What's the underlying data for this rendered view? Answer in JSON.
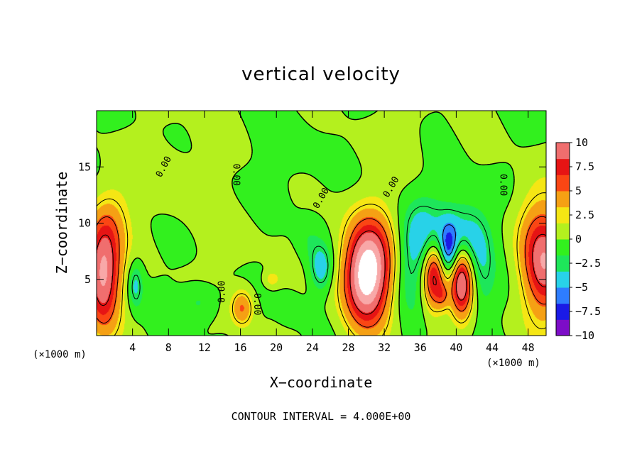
{
  "chart_data": {
    "type": "heatmap",
    "title": "vertical velocity",
    "xlabel": "X−coordinate",
    "ylabel": "Z−coordinate",
    "x_unit_left": "(×1000 m)",
    "x_unit_right": "(×1000 m)",
    "xlim": [
      0,
      50
    ],
    "ylim": [
      0,
      20
    ],
    "xticks": [
      4,
      8,
      12,
      16,
      20,
      24,
      28,
      32,
      36,
      40,
      44,
      48
    ],
    "yticks": [
      5,
      10,
      15
    ],
    "contour_interval_text": "CONTOUR INTERVAL = 4.000E+00",
    "contour_labels": [
      {
        "text": "0.00",
        "x": 7.5,
        "y": 15.0,
        "rot": -62
      },
      {
        "text": "0.00",
        "x": 15.5,
        "y": 14.3,
        "rot": 90
      },
      {
        "text": "0.00",
        "x": 25.0,
        "y": 12.2,
        "rot": -60
      },
      {
        "text": "0.00",
        "x": 32.8,
        "y": 13.2,
        "rot": -60
      },
      {
        "text": "0.00",
        "x": 45.2,
        "y": 13.4,
        "rot": 90
      },
      {
        "text": "0.00",
        "x": 14.0,
        "y": 3.9,
        "rot": -90
      },
      {
        "text": "0.00",
        "x": 17.8,
        "y": 2.8,
        "rot": 90
      }
    ],
    "features": [
      {
        "x": 0.7,
        "z": 5.5,
        "sx": 1.4,
        "sz": 3.5,
        "a": 16
      },
      {
        "x": 49.8,
        "z": 6.5,
        "sx": 1.8,
        "sz": 3.5,
        "a": 14
      },
      {
        "x": 30.0,
        "z": 5.2,
        "sx": 1.9,
        "sz": 3.2,
        "a": 18
      },
      {
        "x": 31.0,
        "z": 8.0,
        "sx": 2.2,
        "sz": 3.0,
        "a": 4
      },
      {
        "x": 37.5,
        "z": 5.5,
        "sx": 0.9,
        "sz": 2.2,
        "a": 15
      },
      {
        "x": 40.6,
        "z": 5.0,
        "sx": 0.9,
        "sz": 2.3,
        "a": 16
      },
      {
        "x": 16.2,
        "z": 2.5,
        "sx": 0.9,
        "sz": 1.2,
        "a": 8
      },
      {
        "x": 4.3,
        "z": 4.5,
        "sx": 0.6,
        "sz": 1.5,
        "a": -6
      },
      {
        "x": 25.0,
        "z": 6.0,
        "sx": 0.9,
        "sz": 1.5,
        "a": -7
      },
      {
        "x": 11.5,
        "z": 3.0,
        "sx": 1.4,
        "sz": 1.1,
        "a": -3.5
      },
      {
        "x": 36.5,
        "z": 8.5,
        "sx": 2.0,
        "sz": 2.5,
        "a": -7
      },
      {
        "x": 41.0,
        "z": 8.8,
        "sx": 1.8,
        "sz": 2.2,
        "a": -8
      },
      {
        "x": 39.2,
        "z": 7.5,
        "sx": 0.7,
        "sz": 1.5,
        "a": -7
      },
      {
        "x": 34.5,
        "z": 5.0,
        "sx": 1.2,
        "sz": 3.0,
        "a": -3
      },
      {
        "x": 43.0,
        "z": 5.0,
        "sx": 1.0,
        "sz": 3.0,
        "a": -3
      },
      {
        "x": 2.0,
        "z": 10.5,
        "sx": 1.5,
        "sz": 2.5,
        "a": 3
      },
      {
        "x": 48.0,
        "z": 10.5,
        "sx": 1.5,
        "sz": 2.5,
        "a": 2
      },
      {
        "x": 23.5,
        "z": 8.5,
        "sx": 1.0,
        "sz": 1.5,
        "a": -2
      },
      {
        "x": 21.5,
        "z": 2.5,
        "sx": 1.0,
        "sz": 1.0,
        "a": -2
      },
      {
        "x": 9.0,
        "z": 14.0,
        "sx": 3.0,
        "sz": 3.0,
        "a": 1.5
      },
      {
        "x": 22.0,
        "z": 16.0,
        "sx": 3.0,
        "sz": 3.0,
        "a": -1
      },
      {
        "x": 33.0,
        "z": 17.5,
        "sx": 3.0,
        "sz": 2.0,
        "a": 1.2
      },
      {
        "x": 15.0,
        "z": 8.5,
        "sx": 2.0,
        "sz": 2.0,
        "a": 1.5
      },
      {
        "x": 19.5,
        "z": 5.0,
        "sx": 0.6,
        "sz": 0.5,
        "a": 4
      },
      {
        "x": 38.5,
        "z": 3.5,
        "sx": 0.5,
        "sz": 0.8,
        "a": 4
      }
    ]
  },
  "colorbar": {
    "labels": [
      "10",
      "7.5",
      "5",
      "2.5",
      "0",
      "−2.5",
      "−5",
      "−7.5",
      "−10"
    ],
    "levels": [
      -10,
      -7.5,
      -5,
      -2.5,
      0,
      2.5,
      5,
      7.5,
      10
    ],
    "colors": [
      "#7d0dc8",
      "#1a1ae6",
      "#2e7dff",
      "#28d2e8",
      "#1ee65a",
      "#32f01e",
      "#b4f01e",
      "#f5e614",
      "#f5a014",
      "#fa4614",
      "#e61414",
      "#f06e6e",
      "#f8a8a8",
      "#ffffff"
    ],
    "background": "#00f000"
  }
}
